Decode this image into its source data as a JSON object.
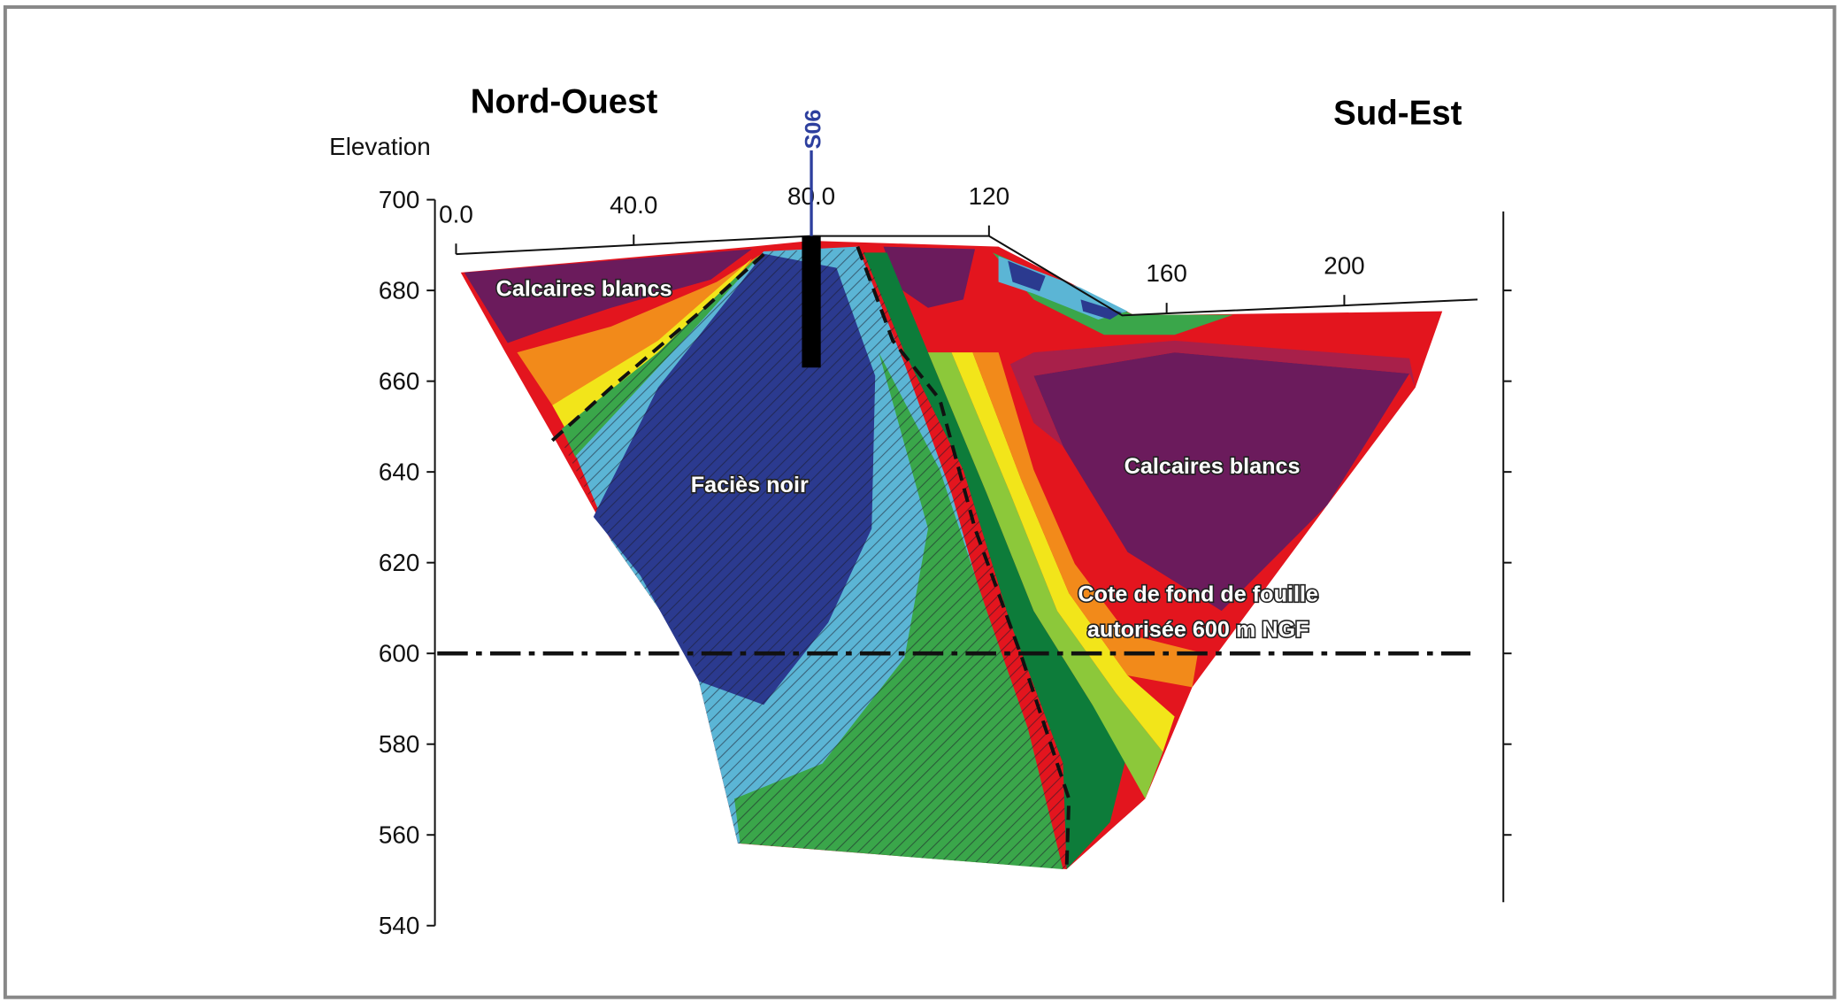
{
  "chart_data": {
    "type": "section",
    "left_title": "Nord-Ouest",
    "right_title": "Sud-Est",
    "y_label": "Elevation",
    "ylim": [
      540,
      700
    ],
    "yticks": [
      540,
      560,
      580,
      600,
      620,
      640,
      660,
      680,
      700
    ],
    "xlim": [
      0,
      230
    ],
    "xticks": [
      {
        "value": 0,
        "label": "0.0"
      },
      {
        "value": 40,
        "label": "40.0"
      },
      {
        "value": 80,
        "label": "80.0"
      },
      120,
      160,
      200
    ],
    "topography": {
      "x": [
        0,
        70,
        80,
        120,
        150,
        230
      ],
      "y": [
        688,
        691.5,
        692,
        692,
        674.5,
        678
      ]
    },
    "borehole": {
      "name": "S06",
      "x": 80,
      "top": 692,
      "bottom": 663,
      "color": "#2d3f9e"
    },
    "reference_line": 600,
    "annotations": [
      "Calcaires blancs",
      "Faciès noir",
      "Calcaires blancs",
      "Cote de fond de fouille",
      "autorisée 600 m NGF"
    ]
  }
}
